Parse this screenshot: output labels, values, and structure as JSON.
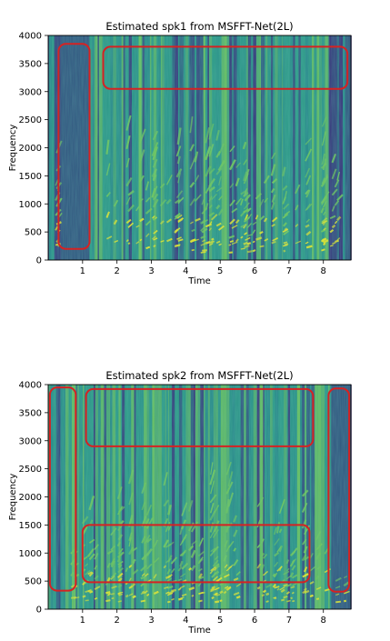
{
  "colors": {
    "spec_dark": "#3a2f7a",
    "spec_mid": "#2a8c8a",
    "spec_teal": "#2f9d88",
    "spec_green": "#6fc65c",
    "spec_yellow": "#e6e62a",
    "highlight": "#d62222"
  },
  "chart_data": [
    {
      "type": "heatmap",
      "title": "Estimated spk1 from MSFFT-Net(2L)",
      "xlabel": "Time",
      "ylabel": "Frequency",
      "xlim": [
        0,
        8.8
      ],
      "ylim": [
        0,
        4000
      ],
      "xticks": [
        1,
        2,
        3,
        4,
        5,
        6,
        7,
        8
      ],
      "yticks": [
        0,
        500,
        1000,
        1500,
        2000,
        2500,
        3000,
        3500,
        4000
      ],
      "colormap": "viridis",
      "highlight_boxes": [
        {
          "x0": 0.3,
          "x1": 1.2,
          "y0": 200,
          "y1": 3850
        },
        {
          "x0": 1.6,
          "x1": 8.7,
          "y0": 3050,
          "y1": 3800
        }
      ]
    },
    {
      "type": "heatmap",
      "title": "Estimated spk2 from MSFFT-Net(2L)",
      "xlabel": "Time",
      "ylabel": "Frequency",
      "xlim": [
        0,
        8.8
      ],
      "ylim": [
        0,
        4000
      ],
      "xticks": [
        1,
        2,
        3,
        4,
        5,
        6,
        7,
        8
      ],
      "yticks": [
        0,
        500,
        1000,
        1500,
        2000,
        2500,
        3000,
        3500,
        4000
      ],
      "colormap": "viridis",
      "highlight_boxes": [
        {
          "x0": 0.05,
          "x1": 0.8,
          "y0": 330,
          "y1": 3950
        },
        {
          "x0": 1.1,
          "x1": 7.7,
          "y0": 2900,
          "y1": 3920
        },
        {
          "x0": 1.0,
          "x1": 7.6,
          "y0": 480,
          "y1": 1500
        },
        {
          "x0": 8.15,
          "x1": 8.75,
          "y0": 310,
          "y1": 3930
        }
      ]
    }
  ]
}
